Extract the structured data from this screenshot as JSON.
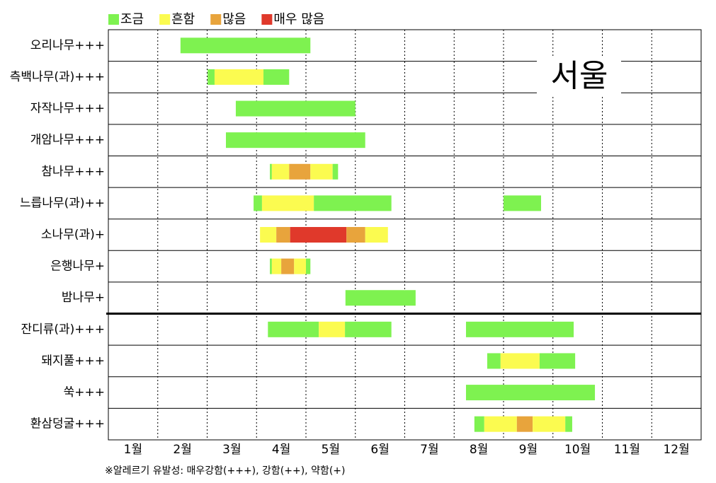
{
  "chart_data": {
    "type": "range-bar",
    "annotation": "서울",
    "footnote": "※알레르기 유발성: 매우강함(+++), 강함(++), 약함(+)",
    "levels": [
      {
        "name": "조금",
        "color": "#7ef250"
      },
      {
        "name": "흔함",
        "color": "#fbfb50"
      },
      {
        "name": "많음",
        "color": "#e8a43c"
      },
      {
        "name": "매우 많음",
        "color": "#e0392b"
      }
    ],
    "xlim": [
      0,
      12
    ],
    "xticks": [
      {
        "value": 0.5,
        "label": "1월"
      },
      {
        "value": 1.5,
        "label": "2월"
      },
      {
        "value": 2.5,
        "label": "3월"
      },
      {
        "value": 3.5,
        "label": "4월"
      },
      {
        "value": 4.5,
        "label": "5월"
      },
      {
        "value": 5.5,
        "label": "6월"
      },
      {
        "value": 6.5,
        "label": "7월"
      },
      {
        "value": 7.5,
        "label": "8월"
      },
      {
        "value": 8.5,
        "label": "9월"
      },
      {
        "value": 9.5,
        "label": "10월"
      },
      {
        "value": 10.5,
        "label": "11월"
      },
      {
        "value": 11.5,
        "label": "12월"
      }
    ],
    "xgrid": [
      1,
      2,
      3,
      4,
      5,
      6,
      7,
      8,
      9,
      10,
      11
    ],
    "groups": [
      [
        {
          "label": "오리나무+++",
          "segments": [
            {
              "start": 1.46,
              "end": 4.09,
              "level": 0
            }
          ]
        },
        {
          "label": "측백나무(과)+++",
          "segments": [
            {
              "start": 2.01,
              "end": 2.15,
              "level": 0
            },
            {
              "start": 2.15,
              "end": 3.14,
              "level": 1
            },
            {
              "start": 3.14,
              "end": 3.66,
              "level": 0
            }
          ]
        },
        {
          "label": "자작나무+++",
          "segments": [
            {
              "start": 2.58,
              "end": 5.0,
              "level": 0
            }
          ]
        },
        {
          "label": "개암나무+++",
          "segments": [
            {
              "start": 2.38,
              "end": 5.2,
              "level": 0
            }
          ]
        },
        {
          "label": "참나무+++",
          "segments": [
            {
              "start": 3.27,
              "end": 3.31,
              "level": 0
            },
            {
              "start": 3.31,
              "end": 3.66,
              "level": 1
            },
            {
              "start": 3.66,
              "end": 4.09,
              "level": 2
            },
            {
              "start": 4.09,
              "end": 4.54,
              "level": 1
            },
            {
              "start": 4.54,
              "end": 4.65,
              "level": 0
            }
          ]
        },
        {
          "label": "느릅나무(과)++",
          "segments": [
            {
              "start": 2.94,
              "end": 3.11,
              "level": 0
            },
            {
              "start": 3.11,
              "end": 4.16,
              "level": 1
            },
            {
              "start": 4.16,
              "end": 5.73,
              "level": 0
            },
            {
              "start": 8.0,
              "end": 8.76,
              "level": 0
            }
          ]
        },
        {
          "label": "소나무(과)+",
          "segments": [
            {
              "start": 3.07,
              "end": 3.4,
              "level": 1
            },
            {
              "start": 3.4,
              "end": 3.68,
              "level": 2
            },
            {
              "start": 3.68,
              "end": 4.82,
              "level": 3
            },
            {
              "start": 4.82,
              "end": 5.2,
              "level": 2
            },
            {
              "start": 5.2,
              "end": 5.66,
              "level": 1
            }
          ]
        },
        {
          "label": "은행나무+",
          "segments": [
            {
              "start": 3.27,
              "end": 3.31,
              "level": 0
            },
            {
              "start": 3.31,
              "end": 3.5,
              "level": 1
            },
            {
              "start": 3.5,
              "end": 3.76,
              "level": 2
            },
            {
              "start": 3.76,
              "end": 4.0,
              "level": 1
            },
            {
              "start": 4.0,
              "end": 4.09,
              "level": 0
            }
          ]
        },
        {
          "label": "밤나무+",
          "segments": [
            {
              "start": 4.8,
              "end": 6.22,
              "level": 0
            }
          ]
        }
      ],
      [
        {
          "label": "잔디류(과)+++",
          "segments": [
            {
              "start": 3.23,
              "end": 4.26,
              "level": 0
            },
            {
              "start": 4.26,
              "end": 4.79,
              "level": 1
            },
            {
              "start": 4.79,
              "end": 5.73,
              "level": 0
            },
            {
              "start": 7.24,
              "end": 9.42,
              "level": 0
            }
          ]
        },
        {
          "label": "돼지풀+++",
          "segments": [
            {
              "start": 7.67,
              "end": 7.94,
              "level": 0
            },
            {
              "start": 7.94,
              "end": 8.73,
              "level": 1
            },
            {
              "start": 8.73,
              "end": 9.45,
              "level": 0
            }
          ]
        },
        {
          "label": "쑥+++",
          "segments": [
            {
              "start": 7.24,
              "end": 9.85,
              "level": 0
            }
          ]
        },
        {
          "label": "환삼덩굴+++",
          "segments": [
            {
              "start": 7.41,
              "end": 7.61,
              "level": 0
            },
            {
              "start": 7.61,
              "end": 8.27,
              "level": 1
            },
            {
              "start": 8.27,
              "end": 8.59,
              "level": 2
            },
            {
              "start": 8.59,
              "end": 9.25,
              "level": 1
            },
            {
              "start": 9.25,
              "end": 9.39,
              "level": 0
            }
          ]
        }
      ]
    ]
  }
}
